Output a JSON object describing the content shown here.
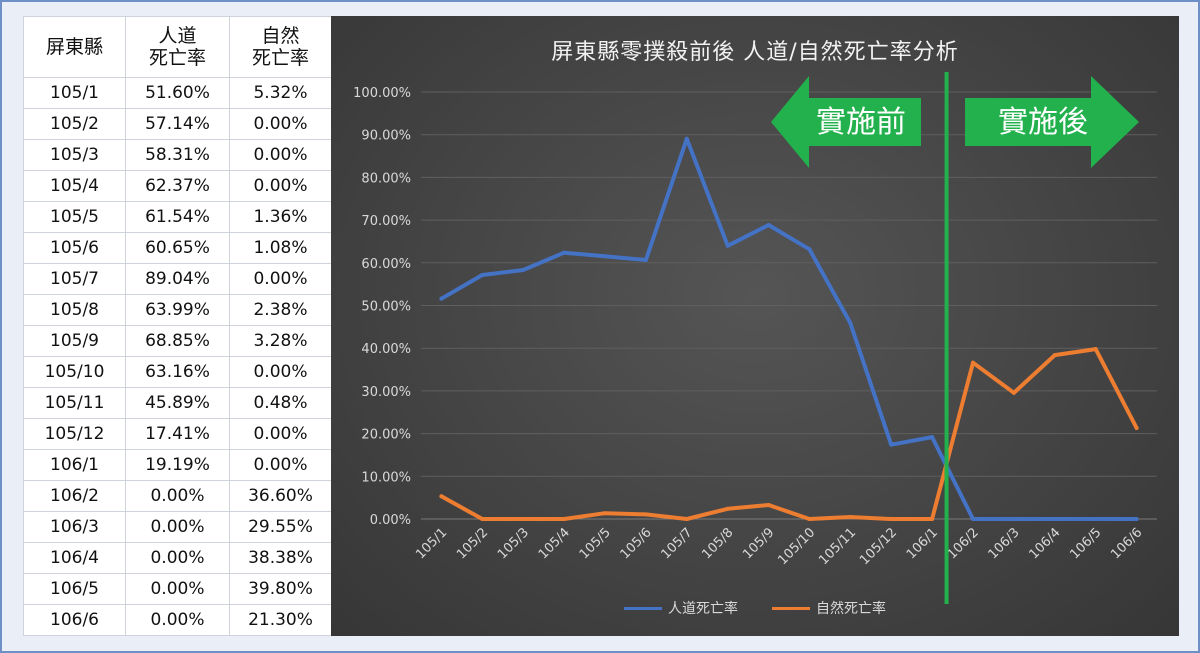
{
  "table": {
    "headers": [
      [
        "屏東縣"
      ],
      [
        "人道",
        "死亡率"
      ],
      [
        "自然",
        "死亡率"
      ]
    ],
    "rows": [
      [
        "105/1",
        "51.60%",
        "5.32%"
      ],
      [
        "105/2",
        "57.14%",
        "0.00%"
      ],
      [
        "105/3",
        "58.31%",
        "0.00%"
      ],
      [
        "105/4",
        "62.37%",
        "0.00%"
      ],
      [
        "105/5",
        "61.54%",
        "1.36%"
      ],
      [
        "105/6",
        "60.65%",
        "1.08%"
      ],
      [
        "105/7",
        "89.04%",
        "0.00%"
      ],
      [
        "105/8",
        "63.99%",
        "2.38%"
      ],
      [
        "105/9",
        "68.85%",
        "3.28%"
      ],
      [
        "105/10",
        "63.16%",
        "0.00%"
      ],
      [
        "105/11",
        "45.89%",
        "0.48%"
      ],
      [
        "105/12",
        "17.41%",
        "0.00%"
      ],
      [
        "106/1",
        "19.19%",
        "0.00%"
      ],
      [
        "106/2",
        "0.00%",
        "36.60%"
      ],
      [
        "106/3",
        "0.00%",
        "29.55%"
      ],
      [
        "106/4",
        "0.00%",
        "38.38%"
      ],
      [
        "106/5",
        "0.00%",
        "39.80%"
      ],
      [
        "106/6",
        "0.00%",
        "21.30%"
      ]
    ]
  },
  "chart_data": {
    "type": "line",
    "title": "屏東縣零撲殺前後 人道/自然死亡率分析",
    "categories": [
      "105/1",
      "105/2",
      "105/3",
      "105/4",
      "105/5",
      "105/6",
      "105/7",
      "105/8",
      "105/9",
      "105/10",
      "105/11",
      "105/12",
      "106/1",
      "106/2",
      "106/3",
      "106/4",
      "106/5",
      "106/6"
    ],
    "series": [
      {
        "name": "人道死亡率",
        "values": [
          51.6,
          57.14,
          58.31,
          62.37,
          61.54,
          60.65,
          89.04,
          63.99,
          68.85,
          63.16,
          45.89,
          17.41,
          19.19,
          0,
          0,
          0,
          0,
          0
        ]
      },
      {
        "name": "自然死亡率",
        "values": [
          5.32,
          0,
          0,
          0,
          1.36,
          1.08,
          0,
          2.38,
          3.28,
          0,
          0.48,
          0,
          0,
          36.6,
          29.55,
          38.38,
          39.8,
          21.3
        ]
      }
    ],
    "ylim": [
      0,
      100
    ],
    "y_ticks": [
      "0.00%",
      "10.00%",
      "20.00%",
      "30.00%",
      "40.00%",
      "50.00%",
      "60.00%",
      "70.00%",
      "80.00%",
      "90.00%",
      "100.00%"
    ],
    "grid": true,
    "legend_position": "bottom",
    "annotations": {
      "divider_after": "106/1",
      "before_label": "實施前",
      "after_label": "實施後"
    },
    "colors": {
      "series1": "#4472c4",
      "series2": "#ed7d31",
      "divider": "#22b14c",
      "arrow": "#22b14c",
      "grid": "#5f5f5f"
    }
  }
}
